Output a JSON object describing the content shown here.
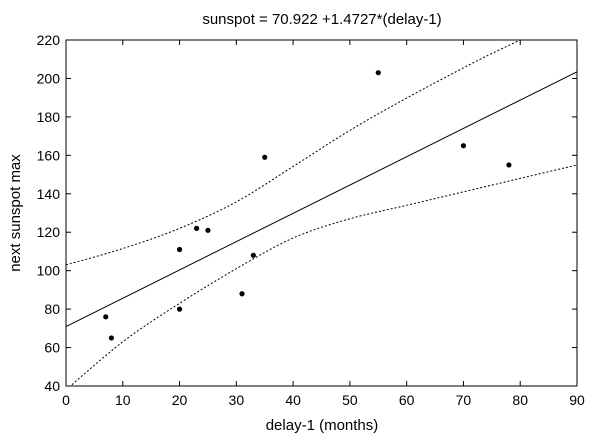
{
  "chart_data": {
    "type": "scatter",
    "title": "sunspot = 70.922 +1.4727*(delay-1)",
    "xlabel": "delay-1 (months)",
    "ylabel": "next sunspot max",
    "xlim": [
      0,
      90
    ],
    "ylim": [
      40,
      220
    ],
    "xticks": [
      0,
      10,
      20,
      30,
      40,
      50,
      60,
      70,
      80,
      90
    ],
    "yticks": [
      40,
      60,
      80,
      100,
      120,
      140,
      160,
      180,
      200,
      220
    ],
    "grid": false,
    "legend": "none",
    "points": {
      "x": [
        7,
        8,
        20,
        20,
        23,
        25,
        31,
        33,
        35,
        55,
        70,
        78
      ],
      "y": [
        76,
        65,
        80,
        111,
        122,
        121,
        88,
        108,
        159,
        203,
        165,
        155
      ]
    },
    "fit_line": {
      "intercept": 70.922,
      "slope": 1.4727,
      "style": "solid"
    },
    "confidence_band": {
      "style": "dotted",
      "upper": {
        "x": [
          0,
          10,
          20,
          30,
          40,
          50,
          60,
          70,
          75,
          80
        ],
        "y": [
          103,
          111.5,
          122,
          135.8,
          154.2,
          173,
          189.8,
          205.5,
          213,
          220
        ]
      },
      "lower": {
        "x": [
          0,
          10,
          20,
          30,
          40,
          50,
          60,
          70,
          80,
          90
        ],
        "y": [
          38,
          63,
          83,
          101,
          117,
          127,
          134,
          141,
          148,
          155
        ]
      }
    },
    "colors": {
      "background": "#ffffff",
      "axes": "#000000",
      "points": "#000000",
      "lines": "#000000"
    }
  }
}
